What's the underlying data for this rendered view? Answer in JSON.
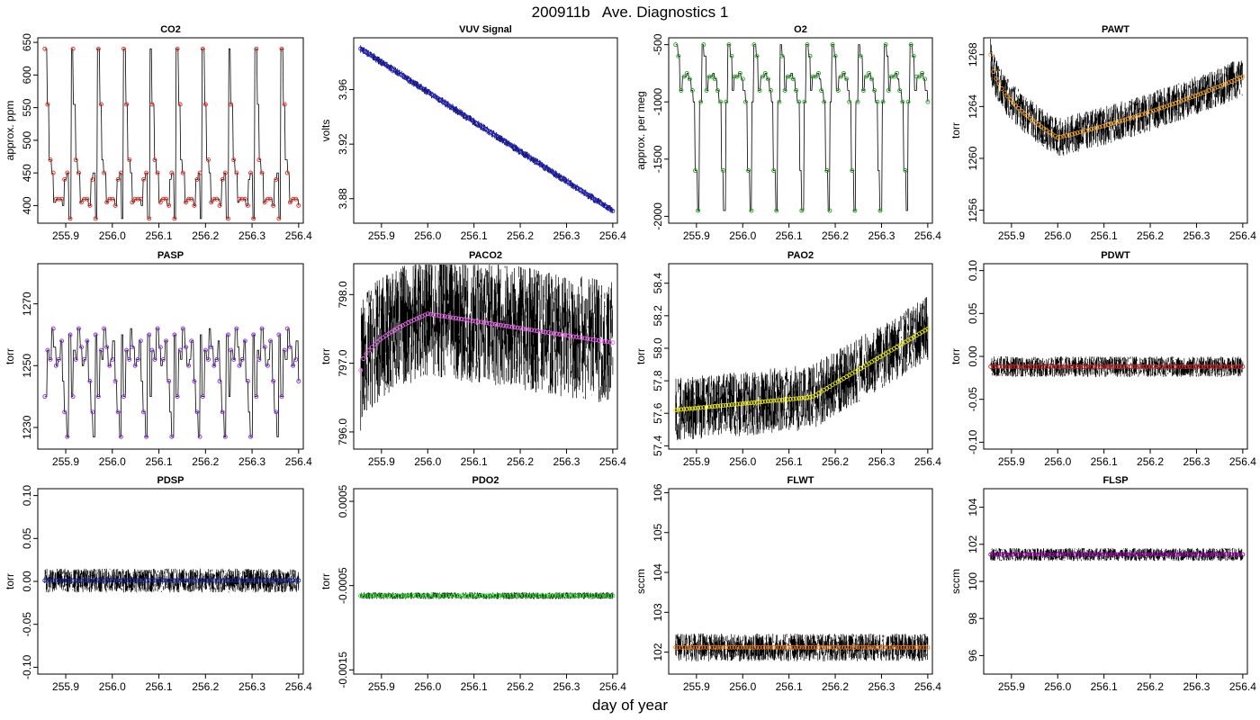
{
  "figure": {
    "title": "200911b   Ave. Diagnostics 1",
    "xlabel": "day of year",
    "xticks": [
      "255.9",
      "256.0",
      "256.1",
      "256.2",
      "256.3",
      "256.4"
    ]
  },
  "chart_data": [
    {
      "type": "line",
      "title": "CO2",
      "ylabel": "approx. ppm",
      "xlim": [
        255.84,
        256.41
      ],
      "ylim": [
        373,
        657
      ],
      "yticks": [
        {
          "v": 400,
          "l": "400"
        },
        {
          "v": 450,
          "l": "450"
        },
        {
          "v": 500,
          "l": "500"
        },
        {
          "v": 550,
          "l": "550"
        },
        {
          "v": 600,
          "l": "600"
        },
        {
          "v": 650,
          "l": "650"
        }
      ],
      "marker_color": "#e8261c",
      "pattern": "co2",
      "series": [
        {
          "x_range": [
            255.855,
            256.4
          ],
          "period": 0.0563,
          "levels": [
            640,
            555,
            470,
            450,
            405,
            410,
            410,
            410,
            400,
            440,
            450,
            380
          ],
          "noise_band": 0
        }
      ]
    },
    {
      "type": "line",
      "title": "VUV Signal",
      "ylabel": "volts",
      "xlim": [
        255.84,
        256.41
      ],
      "ylim": [
        3.862,
        3.998
      ],
      "yticks": [
        {
          "v": 3.88,
          "l": "3.88"
        },
        {
          "v": 3.92,
          "l": "3.92"
        },
        {
          "v": 3.96,
          "l": "3.96"
        }
      ],
      "marker_color": "#2222cc",
      "pattern": "trend",
      "series": [
        {
          "x_range": [
            255.855,
            256.4
          ],
          "start": 3.99,
          "end": 3.871,
          "noise_band": 0.003
        }
      ]
    },
    {
      "type": "line",
      "title": "O2",
      "ylabel": "approx. per meg",
      "xlim": [
        255.84,
        256.41
      ],
      "ylim": [
        -2060,
        -440
      ],
      "yticks": [
        {
          "v": -2000,
          "l": "-2000"
        },
        {
          "v": -1500,
          "l": "-1500"
        },
        {
          "v": -1000,
          "l": "-1000"
        },
        {
          "v": -500,
          "l": "-500"
        }
      ],
      "marker_color": "#1fa31f",
      "pattern": "o2",
      "series": [
        {
          "x_range": [
            255.855,
            256.4
          ],
          "period": 0.0563,
          "levels": [
            -500,
            -600,
            -900,
            -780,
            -780,
            -750,
            -800,
            -900,
            -1000,
            -1600,
            -1950,
            -1000
          ],
          "noise_band": 0
        }
      ]
    },
    {
      "type": "line",
      "title": "PAWT",
      "ylabel": "torr",
      "xlim": [
        255.84,
        256.41
      ],
      "ylim": [
        1255,
        1269.3
      ],
      "yticks": [
        {
          "v": 1256,
          "l": "1256"
        },
        {
          "v": 1260,
          "l": "1260"
        },
        {
          "v": 1264,
          "l": "1264"
        },
        {
          "v": 1268,
          "l": "1268"
        }
      ],
      "marker_color": "#f0a020",
      "pattern": "pawt",
      "series": [
        {
          "x_range": [
            255.855,
            256.4
          ],
          "start": 1268,
          "min": 1261.6,
          "min_at": 256.0,
          "end": 1266.3,
          "noise_band": 1.5
        }
      ]
    },
    {
      "type": "line",
      "title": "PASP",
      "ylabel": "torr",
      "xlim": [
        255.84,
        256.41
      ],
      "ylim": [
        1223,
        1283
      ],
      "yticks": [
        {
          "v": 1230,
          "l": "1230"
        },
        {
          "v": 1250,
          "l": "1250"
        },
        {
          "v": 1270,
          "l": "1270"
        }
      ],
      "marker_color": "#8a2be2",
      "pattern": "pasp",
      "series": [
        {
          "x_range": [
            255.855,
            256.4
          ],
          "period": 0.0563,
          "levels": [
            1240,
            1255,
            1252,
            1262,
            1256,
            1250,
            1252,
            1258,
            1245,
            1235,
            1227,
            1260
          ],
          "noise_band": 0
        }
      ]
    },
    {
      "type": "line",
      "title": "PACO2",
      "ylabel": "torr",
      "xlim": [
        255.84,
        256.41
      ],
      "ylim": [
        795.75,
        798.45
      ],
      "yticks": [
        {
          "v": 796,
          "l": "796.0"
        },
        {
          "v": 797,
          "l": "797.0"
        },
        {
          "v": 798,
          "l": "798.0"
        }
      ],
      "marker_color": "#ee66ee",
      "pattern": "paco2",
      "series": [
        {
          "x_range": [
            255.855,
            256.4
          ],
          "start": 796.9,
          "peak": 797.72,
          "peak_at": 256.0,
          "end": 797.3,
          "noise_band": 0.9
        }
      ]
    },
    {
      "type": "line",
      "title": "PAO2",
      "ylabel": "torr",
      "xlim": [
        255.84,
        256.41
      ],
      "ylim": [
        57.38,
        58.52
      ],
      "yticks": [
        {
          "v": 57.4,
          "l": "57.4"
        },
        {
          "v": 57.6,
          "l": "57.6"
        },
        {
          "v": 57.8,
          "l": "57.8"
        },
        {
          "v": 58.0,
          "l": "58.0"
        },
        {
          "v": 58.2,
          "l": "58.2"
        },
        {
          "v": 58.4,
          "l": "58.4"
        }
      ],
      "marker_color": "#eeee00",
      "pattern": "pao2",
      "series": [
        {
          "x_range": [
            255.855,
            256.4
          ],
          "start": 57.62,
          "mid": 57.7,
          "mid_at": 256.15,
          "end": 58.12,
          "noise_band": 0.2
        }
      ]
    },
    {
      "type": "line",
      "title": "PDWT",
      "ylabel": "torr",
      "xlim": [
        255.84,
        256.41
      ],
      "ylim": [
        -0.108,
        0.108
      ],
      "yticks": [
        {
          "v": -0.1,
          "l": "-0.10"
        },
        {
          "v": -0.05,
          "l": "-0.05"
        },
        {
          "v": 0,
          "l": "0.00"
        },
        {
          "v": 0.05,
          "l": "0.05"
        },
        {
          "v": 0.1,
          "l": "0.10"
        }
      ],
      "marker_color": "#cc2222",
      "pattern": "flat",
      "series": [
        {
          "x_range": [
            255.855,
            256.4
          ],
          "level": -0.012,
          "noise_band": 0.012
        }
      ]
    },
    {
      "type": "line",
      "title": "PDSP",
      "ylabel": "torr",
      "xlim": [
        255.84,
        256.41
      ],
      "ylim": [
        -0.108,
        0.108
      ],
      "yticks": [
        {
          "v": -0.1,
          "l": "-0.10"
        },
        {
          "v": -0.05,
          "l": "-0.05"
        },
        {
          "v": 0,
          "l": "0.00"
        },
        {
          "v": 0.05,
          "l": "0.05"
        },
        {
          "v": 0.1,
          "l": "0.10"
        }
      ],
      "marker_color": "#1a2a99",
      "pattern": "flat",
      "series": [
        {
          "x_range": [
            255.855,
            256.4
          ],
          "level": 0.001,
          "noise_band": 0.014
        }
      ]
    },
    {
      "type": "line",
      "title": "PDO2",
      "ylabel": "torr",
      "xlim": [
        255.84,
        256.41
      ],
      "ylim": [
        -0.00155,
        0.00065
      ],
      "yticks": [
        {
          "v": -0.0015,
          "l": "-0.0015"
        },
        {
          "v": -0.0005,
          "l": "-0.0005"
        },
        {
          "v": 0.0005,
          "l": "0.0005"
        }
      ],
      "marker_color": "#22dd22",
      "pattern": "flat",
      "series": [
        {
          "x_range": [
            255.855,
            256.4
          ],
          "level": -0.00062,
          "noise_band": 4e-05
        }
      ]
    },
    {
      "type": "line",
      "title": "FLWT",
      "ylabel": "sccm",
      "xlim": [
        255.84,
        256.41
      ],
      "ylim": [
        101.45,
        106.1
      ],
      "yticks": [
        {
          "v": 102,
          "l": "102"
        },
        {
          "v": 103,
          "l": "103"
        },
        {
          "v": 104,
          "l": "104"
        },
        {
          "v": 105,
          "l": "105"
        },
        {
          "v": 106,
          "l": "106"
        }
      ],
      "marker_color": "#ee7711",
      "pattern": "flat",
      "series": [
        {
          "x_range": [
            255.855,
            256.4
          ],
          "level": 102.12,
          "noise_band": 0.35
        }
      ]
    },
    {
      "type": "line",
      "title": "FLSP",
      "ylabel": "sccm",
      "xlim": [
        255.84,
        256.41
      ],
      "ylim": [
        95,
        105
      ],
      "yticks": [
        {
          "v": 96,
          "l": "96"
        },
        {
          "v": 98,
          "l": "98"
        },
        {
          "v": 100,
          "l": "100"
        },
        {
          "v": 102,
          "l": "102"
        },
        {
          "v": 104,
          "l": "104"
        }
      ],
      "marker_color": "#9900aa",
      "pattern": "flat",
      "series": [
        {
          "x_range": [
            255.855,
            256.4
          ],
          "level": 101.45,
          "noise_band": 0.35
        }
      ]
    }
  ]
}
